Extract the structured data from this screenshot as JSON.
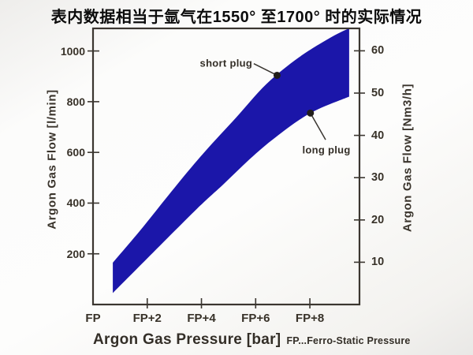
{
  "chart_data": {
    "type": "area",
    "title": "表内数据相当于氩气在1550° 至1700° 时的实际情况",
    "xlabel": "Argon Gas Pressure [bar]",
    "xlabel_note": "FP...Ferro-Static Pressure",
    "ylabel_left": "Argon Gas Flow [l/min]",
    "ylabel_right": "Argon Gas Flow [Nm3/h]",
    "x_tick_labels": [
      "FP",
      "FP+2",
      "FP+4",
      "FP+6",
      "FP+8"
    ],
    "x_tick_values": [
      0,
      2,
      4,
      6,
      8
    ],
    "x_range": [
      0,
      9.83
    ],
    "y_left_ticks": [
      200,
      400,
      600,
      800,
      1000
    ],
    "y_left_range": [
      0,
      1089
    ],
    "y_right_ticks": [
      10,
      20,
      30,
      40,
      50,
      60
    ],
    "y_right_range": [
      0,
      65.3
    ],
    "grid": false,
    "legend": "none (inline callouts)",
    "band_color": "#1b16a9",
    "axis_color": "#3b3630",
    "dot_color": "#221e1b",
    "series": [
      {
        "name": "short plug",
        "role": "upper edge of band",
        "x_bar_above_FP": [
          0.73,
          1.8,
          3.0,
          4.1,
          5.3,
          6.4,
          7.6,
          8.8,
          9.45
        ],
        "y_l_min": [
          165,
          300,
          460,
          600,
          740,
          870,
          975,
          1055,
          1090
        ]
      },
      {
        "name": "long plug",
        "role": "lower edge of band",
        "x_bar_above_FP": [
          0.73,
          1.89,
          3.84,
          4.8,
          5.78,
          6.74,
          8.02,
          9.45
        ],
        "y_l_min": [
          45,
          170,
          378,
          473,
          573,
          660,
          755,
          820
        ]
      }
    ],
    "annotations": [
      {
        "label": "short plug",
        "dot": [
          6.79,
          904
        ],
        "line_from": [
          5.93,
          950
        ],
        "label_at": [
          4.91,
          952
        ]
      },
      {
        "label": "long plug",
        "dot": [
          8.02,
          755
        ],
        "line_from": [
          8.58,
          650
        ],
        "label_at": [
          8.61,
          610
        ]
      }
    ]
  }
}
